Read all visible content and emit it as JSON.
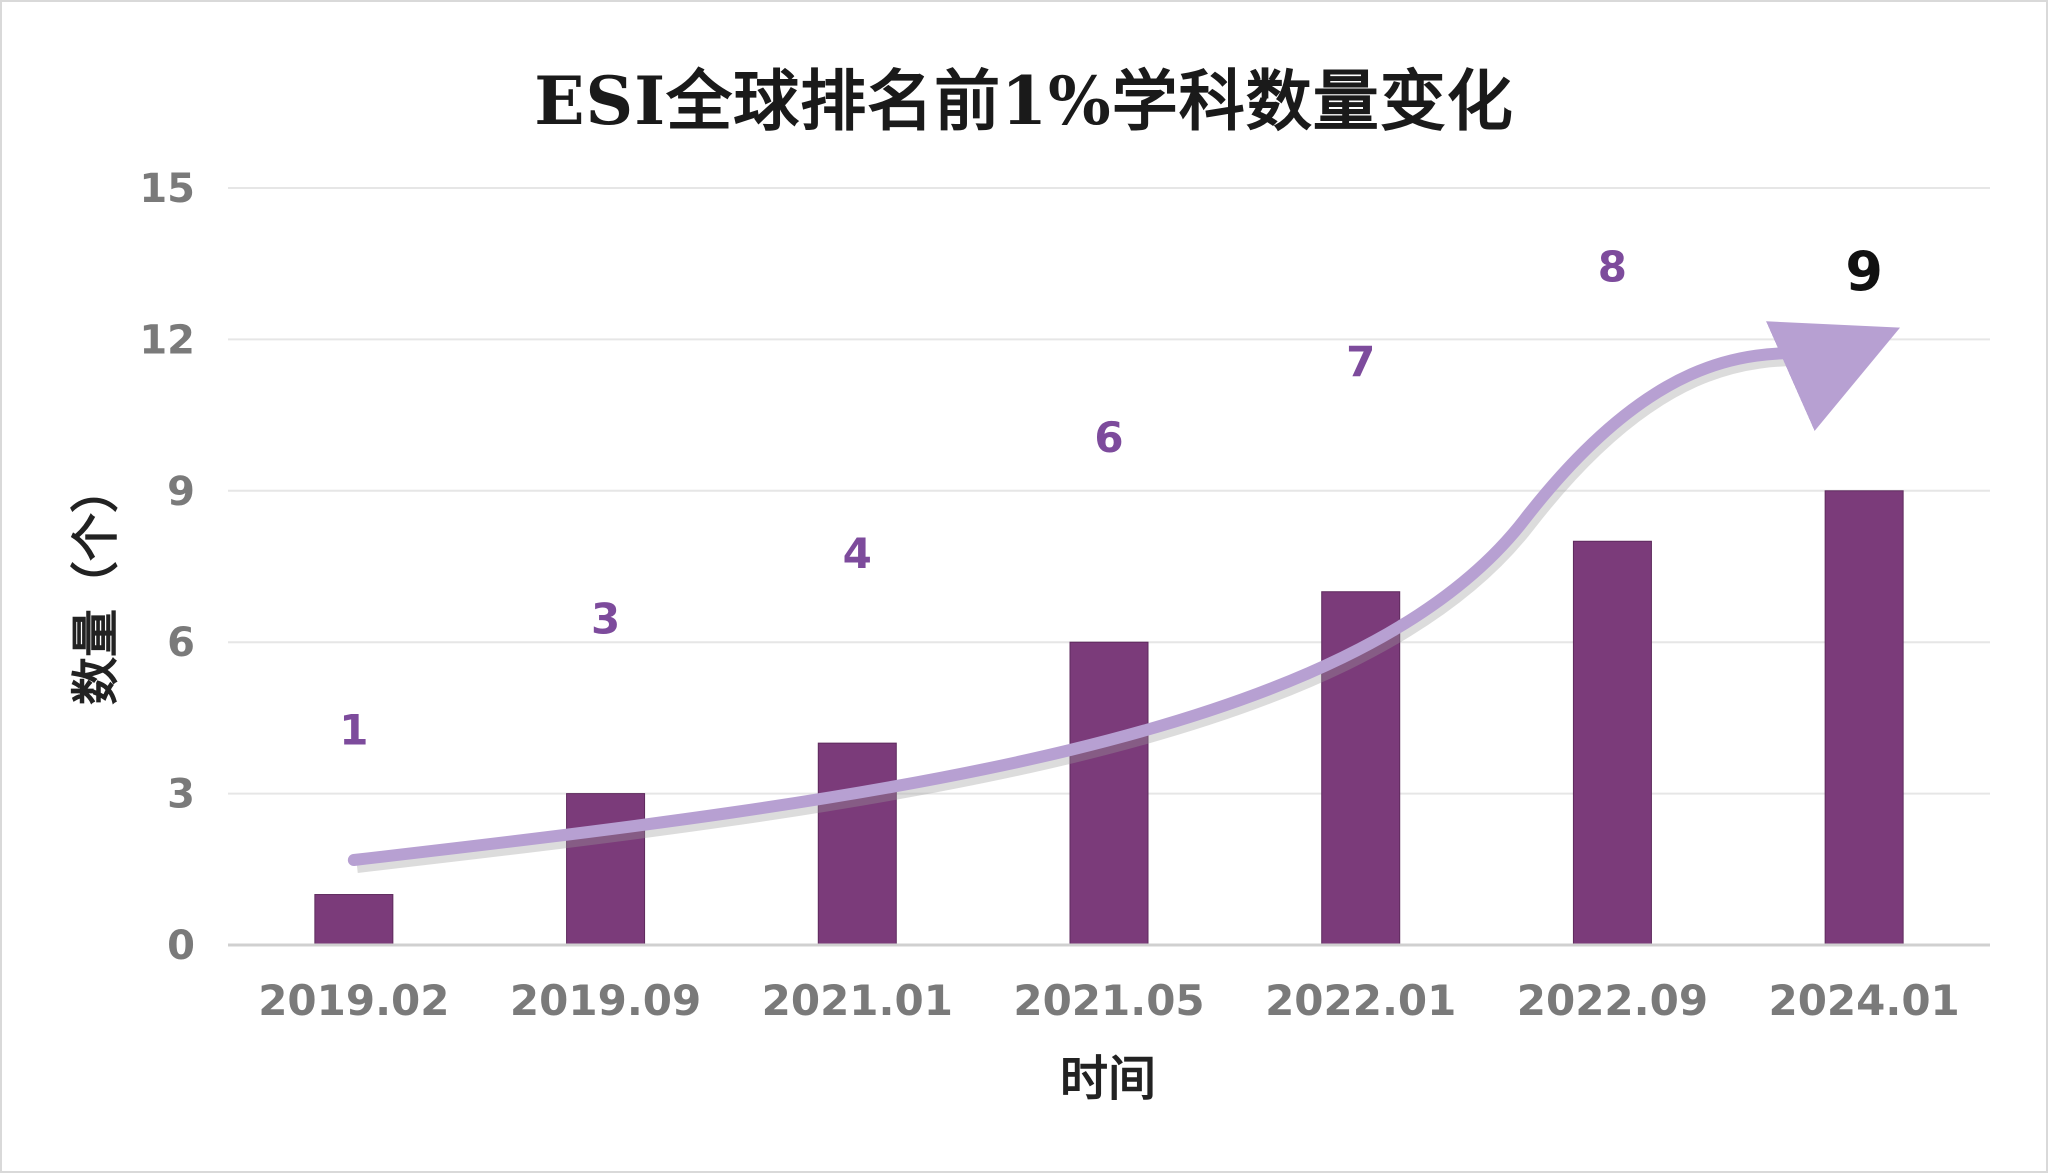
{
  "chart_data": {
    "type": "bar",
    "title": "ESI全球排名前1%学科数量变化",
    "xlabel": "时间",
    "ylabel": "数量（个）",
    "categories": [
      "2019.02",
      "2019.09",
      "2021.01",
      "2021.05",
      "2022.01",
      "2022.09",
      "2024.01"
    ],
    "values": [
      1,
      3,
      4,
      6,
      7,
      8,
      9
    ],
    "data_labels": [
      "1",
      "3",
      "4",
      "6",
      "7",
      "8",
      "9"
    ],
    "ylim": [
      0,
      15
    ],
    "yticks": [
      0,
      3,
      6,
      9,
      12,
      15
    ],
    "ytick_labels": [
      "0",
      "3",
      "6",
      "9",
      "12",
      "15"
    ],
    "grid": true,
    "legend": "none",
    "trend_arrow": true,
    "colors": {
      "bar": "#7b3b7a",
      "data_label": "#7d4b9c",
      "last_label": "#111111",
      "trend": "#b7a0d2",
      "grid": "#e6e6e6"
    }
  }
}
